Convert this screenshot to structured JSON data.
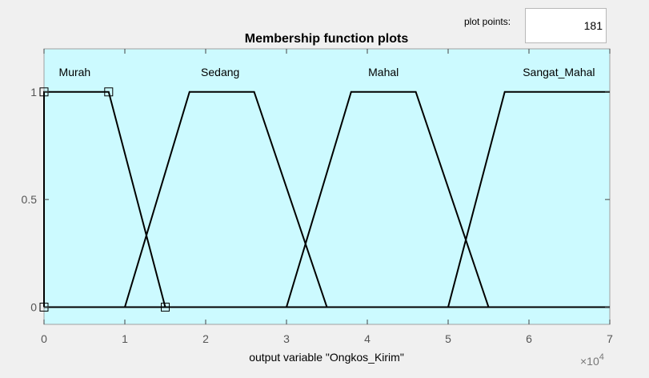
{
  "plot_points": {
    "label": "plot points:",
    "value": "181"
  },
  "chart_data": {
    "type": "line",
    "title": "Membership function plots",
    "xlabel": "output variable \"Ongkos_Kirim\"",
    "x_multiplier_label": "×10",
    "x_multiplier_exponent": "4",
    "xlim": [
      0,
      7
    ],
    "ylim": [
      -0.08,
      1.2
    ],
    "xticks": [
      0,
      1,
      2,
      3,
      4,
      5,
      6,
      7
    ],
    "xtick_labels": [
      "0",
      "1",
      "2",
      "3",
      "4",
      "5",
      "6",
      "7"
    ],
    "yticks": [
      0,
      0.5,
      1
    ],
    "ytick_labels": [
      "0",
      "0.5",
      "1"
    ],
    "grid": false,
    "colors": {
      "plot_bg": "#ccfaff",
      "line": "#000000",
      "page_bg": "#f0f0f0"
    },
    "series": [
      {
        "name": "Murah",
        "label_x": 0.38,
        "x": [
          0,
          0,
          0.8,
          1.5
        ],
        "y": [
          0,
          1,
          1,
          0
        ]
      },
      {
        "name": "Sedang",
        "label_x": 2.18,
        "x": [
          0,
          1,
          1.8,
          2.6,
          3.5,
          7
        ],
        "y": [
          0,
          0,
          1,
          1,
          0,
          0
        ]
      },
      {
        "name": "Mahal",
        "label_x": 4.2,
        "x": [
          0,
          3,
          3.8,
          4.6,
          5.5,
          7
        ],
        "y": [
          0,
          0,
          1,
          1,
          0,
          0
        ]
      },
      {
        "name": "Sangat_Mahal",
        "label_x": 6.37,
        "x": [
          0,
          5,
          5.7,
          7
        ],
        "y": [
          0,
          0,
          1,
          1
        ]
      }
    ],
    "markers": [
      {
        "x": 0,
        "y": 1
      },
      {
        "x": 0,
        "y": 0
      },
      {
        "x": 0.8,
        "y": 1
      },
      {
        "x": 1.5,
        "y": 0
      }
    ]
  }
}
